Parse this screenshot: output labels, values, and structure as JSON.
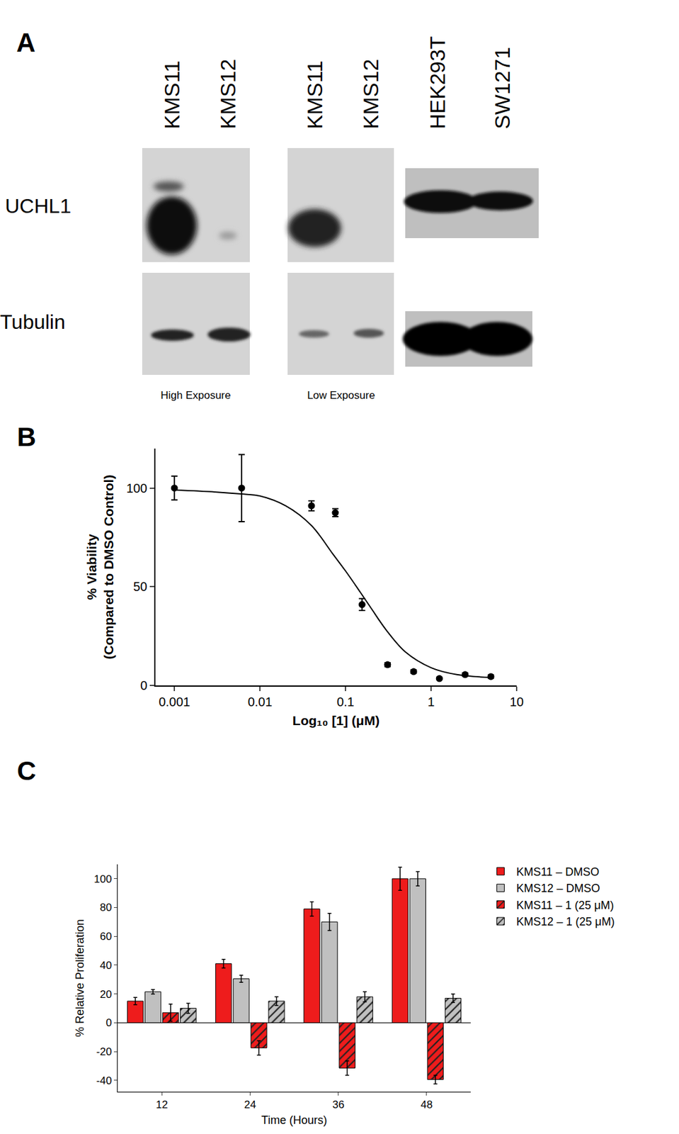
{
  "blot": {
    "label": "A",
    "lanes": [
      "KMS11",
      "KMS12",
      "KMS11",
      "KMS12",
      "HEK293T",
      "SW1271"
    ],
    "rows": [
      "UCHL1",
      "Tubulin"
    ],
    "exposures": [
      "High Exposure",
      "Low Exposure"
    ]
  },
  "chart_data": [
    {
      "type": "scatter",
      "title": "B",
      "xlabel": "Log₁₀ [1] (μM)",
      "ylabel": [
        "% Viability",
        "(Compared to DMSO Control)"
      ],
      "log": "x",
      "grid": false,
      "xlim": [
        0.0006,
        10
      ],
      "xticks": [
        0.001,
        0.01,
        0.1,
        1,
        10
      ],
      "ylim": [
        0,
        120
      ],
      "yticks": [
        0,
        50,
        100
      ],
      "series": [
        {
          "type": "scatter",
          "color": "#000000",
          "marker": "circle",
          "x": [
            0.001,
            0.0061,
            0.04,
            0.076,
            0.156,
            0.31,
            0.625,
            1.25,
            2.5,
            5
          ],
          "values": [
            100,
            100,
            91,
            87.5,
            41,
            10.5,
            7,
            3.5,
            5.5,
            4.5
          ],
          "error": [
            6,
            17,
            2.5,
            2,
            3,
            1,
            0.8,
            0.5,
            0.8,
            0.8
          ]
        },
        {
          "type": "line",
          "color": "#000000",
          "line_style": "solid",
          "x": [
            0.001,
            0.003,
            0.006,
            0.01,
            0.02,
            0.04,
            0.07,
            0.1,
            0.15,
            0.2,
            0.3,
            0.5,
            1,
            2,
            5
          ],
          "values": [
            99,
            98,
            97,
            96,
            91,
            81,
            67,
            58,
            47,
            39,
            28,
            17,
            9,
            5.5,
            4
          ]
        }
      ]
    },
    {
      "type": "bar",
      "title": "C",
      "xlabel": "Time (Hours)",
      "ylabel": "% Relative Proliferation",
      "categories": [
        "12",
        "24",
        "36",
        "48"
      ],
      "ylim": [
        -48,
        110
      ],
      "yticks": [
        -40,
        -20,
        0,
        20,
        40,
        60,
        80,
        100
      ],
      "grid": false,
      "legend": "right",
      "series": [
        {
          "name": "KMS11 – DMSO",
          "color": "#ee1c1c",
          "marker": "solid",
          "values": [
            15,
            41,
            79,
            100
          ],
          "error": [
            2.5,
            3,
            5,
            8
          ]
        },
        {
          "name": "KMS12 – DMSO",
          "color": "#c0c0c0",
          "marker": "solid",
          "values": [
            21.5,
            30.5,
            70,
            100
          ],
          "error": [
            1.5,
            2.5,
            6,
            5
          ]
        },
        {
          "name": "KMS11 – 1 (25 μM)",
          "color": "#ee1c1c",
          "marker": "hatch",
          "values": [
            7,
            -17.5,
            -31.5,
            -39.5
          ],
          "error": [
            6,
            5,
            5,
            3
          ]
        },
        {
          "name": "KMS12 – 1 (25 μM)",
          "color": "#c0c0c0",
          "marker": "hatch",
          "values": [
            10,
            15,
            18,
            17
          ],
          "error": [
            3.5,
            3,
            3.5,
            3
          ]
        }
      ]
    }
  ]
}
